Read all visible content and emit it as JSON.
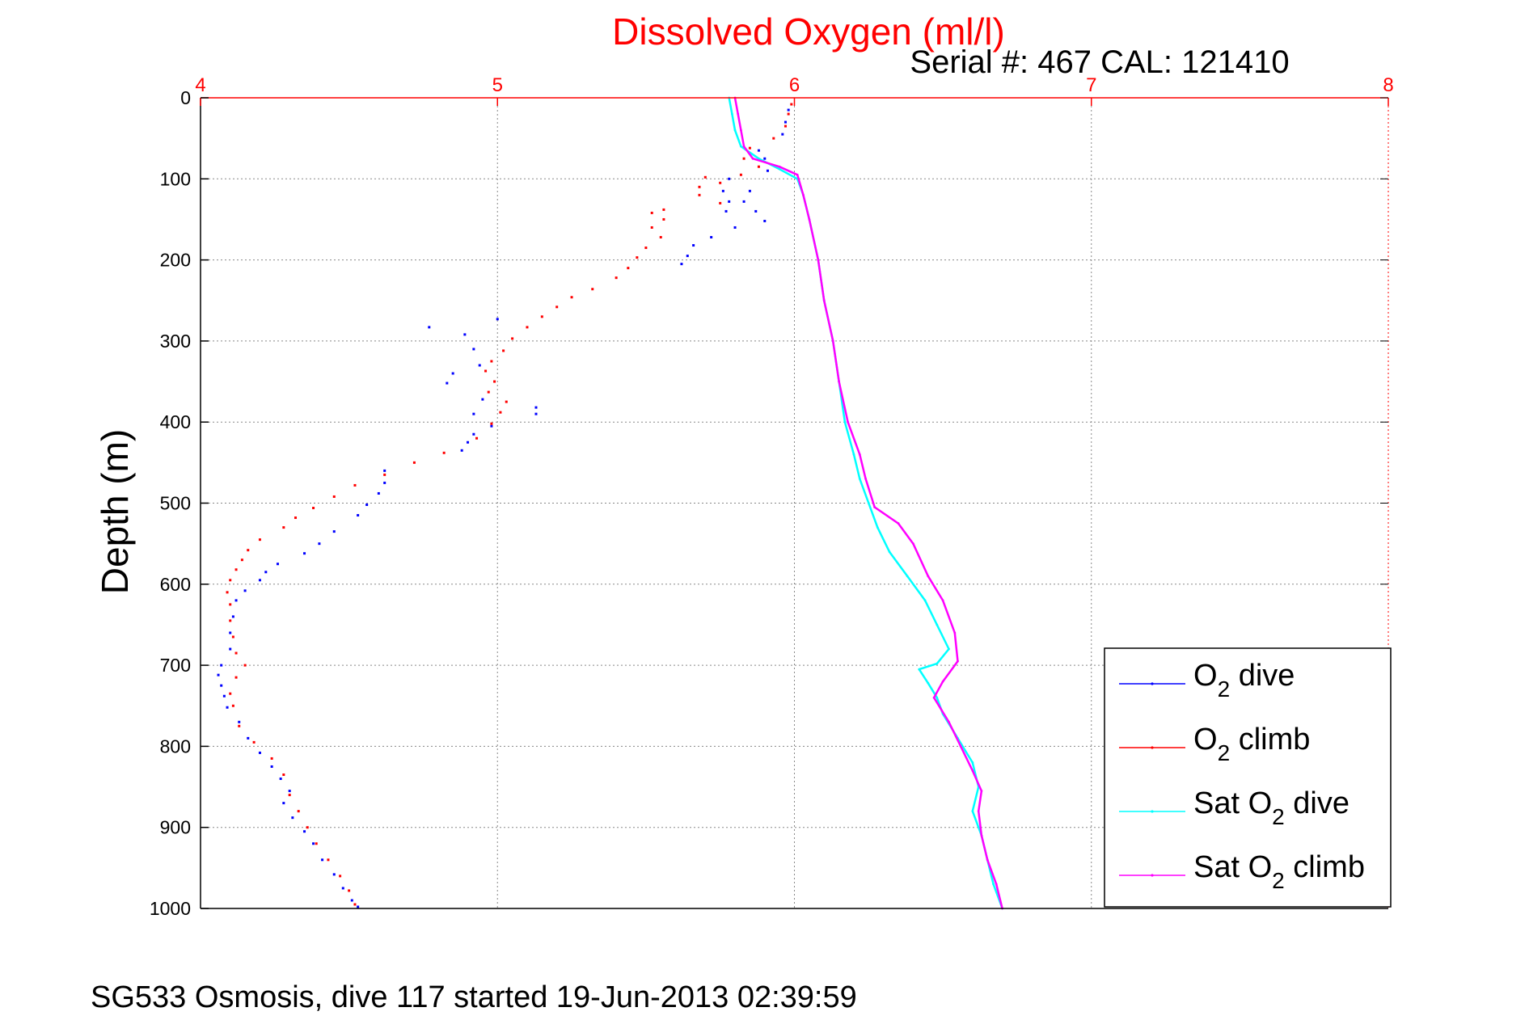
{
  "chart_data": {
    "type": "scatter",
    "title": "Dissolved Oxygen (ml/l)",
    "subtitle": "Serial #: 467  CAL: 121410",
    "footer": "SG533 Osmosis, dive 117 started 19-Jun-2013 02:39:59",
    "xlabel": "",
    "ylabel": "Depth (m)",
    "xlim": [
      4,
      8
    ],
    "ylim": [
      0,
      1000
    ],
    "y_reversed": true,
    "x_axis_position": "top",
    "x_ticks": [
      4,
      5,
      6,
      7,
      8
    ],
    "y_ticks": [
      0,
      100,
      200,
      300,
      400,
      500,
      600,
      700,
      800,
      900,
      1000
    ],
    "grid": true,
    "legend_position": "bottom-right",
    "colors": {
      "title": "#ff0000",
      "x_ticks": "#ff0000",
      "grid": "#888888"
    },
    "series": [
      {
        "name": "O2 dive",
        "label_base": "O",
        "label_sub": "2",
        "label_rest": " dive",
        "color": "#0000ff",
        "style": "points",
        "points": [
          [
            5.98,
            15
          ],
          [
            5.97,
            30
          ],
          [
            5.96,
            45
          ],
          [
            5.88,
            65
          ],
          [
            5.9,
            75
          ],
          [
            5.91,
            90
          ],
          [
            5.78,
            100
          ],
          [
            5.76,
            115
          ],
          [
            5.85,
            115
          ],
          [
            5.78,
            128
          ],
          [
            5.83,
            128
          ],
          [
            5.77,
            140
          ],
          [
            5.87,
            140
          ],
          [
            5.9,
            152
          ],
          [
            5.8,
            160
          ],
          [
            5.72,
            172
          ],
          [
            5.66,
            182
          ],
          [
            5.64,
            195
          ],
          [
            5.62,
            205
          ],
          [
            4.77,
            283
          ],
          [
            5.0,
            273
          ],
          [
            4.89,
            292
          ],
          [
            4.92,
            310
          ],
          [
            4.94,
            330
          ],
          [
            4.85,
            340
          ],
          [
            4.83,
            352
          ],
          [
            4.95,
            372
          ],
          [
            4.92,
            390
          ],
          [
            5.13,
            382
          ],
          [
            5.13,
            390
          ],
          [
            4.98,
            405
          ],
          [
            4.92,
            415
          ],
          [
            4.9,
            425
          ],
          [
            4.88,
            435
          ],
          [
            4.62,
            460
          ],
          [
            4.62,
            475
          ],
          [
            4.6,
            488
          ],
          [
            4.56,
            502
          ],
          [
            4.53,
            515
          ],
          [
            4.45,
            535
          ],
          [
            4.4,
            550
          ],
          [
            4.35,
            562
          ],
          [
            4.26,
            575
          ],
          [
            4.22,
            585
          ],
          [
            4.2,
            595
          ],
          [
            4.15,
            608
          ],
          [
            4.12,
            620
          ],
          [
            4.11,
            640
          ],
          [
            4.1,
            660
          ],
          [
            4.1,
            680
          ],
          [
            4.07,
            700
          ],
          [
            4.06,
            712
          ],
          [
            4.07,
            725
          ],
          [
            4.08,
            738
          ],
          [
            4.09,
            752
          ],
          [
            4.13,
            770
          ],
          [
            4.16,
            790
          ],
          [
            4.2,
            808
          ],
          [
            4.24,
            825
          ],
          [
            4.27,
            840
          ],
          [
            4.3,
            855
          ],
          [
            4.28,
            870
          ],
          [
            4.31,
            888
          ],
          [
            4.35,
            905
          ],
          [
            4.38,
            920
          ],
          [
            4.41,
            940
          ],
          [
            4.45,
            958
          ],
          [
            4.48,
            975
          ],
          [
            4.51,
            990
          ],
          [
            4.53,
            998
          ]
        ]
      },
      {
        "name": "O2 climb",
        "label_base": "O",
        "label_sub": "2",
        "label_rest": " climb",
        "color": "#ff0000",
        "style": "points",
        "points": [
          [
            5.99,
            8
          ],
          [
            5.98,
            20
          ],
          [
            5.97,
            35
          ],
          [
            5.93,
            50
          ],
          [
            5.85,
            62
          ],
          [
            5.83,
            75
          ],
          [
            5.88,
            85
          ],
          [
            5.82,
            95
          ],
          [
            5.7,
            98
          ],
          [
            5.68,
            110
          ],
          [
            5.75,
            105
          ],
          [
            5.68,
            120
          ],
          [
            5.75,
            130
          ],
          [
            5.56,
            138
          ],
          [
            5.52,
            142
          ],
          [
            5.56,
            150
          ],
          [
            5.52,
            160
          ],
          [
            5.55,
            172
          ],
          [
            5.5,
            185
          ],
          [
            5.47,
            197
          ],
          [
            5.44,
            210
          ],
          [
            5.4,
            222
          ],
          [
            5.32,
            236
          ],
          [
            5.25,
            246
          ],
          [
            5.2,
            258
          ],
          [
            5.15,
            270
          ],
          [
            5.1,
            283
          ],
          [
            5.05,
            297
          ],
          [
            5.02,
            312
          ],
          [
            4.98,
            325
          ],
          [
            4.96,
            337
          ],
          [
            4.99,
            350
          ],
          [
            4.97,
            363
          ],
          [
            5.03,
            375
          ],
          [
            5.01,
            388
          ],
          [
            4.98,
            402
          ],
          [
            4.93,
            420
          ],
          [
            4.82,
            438
          ],
          [
            4.72,
            450
          ],
          [
            4.62,
            465
          ],
          [
            4.52,
            478
          ],
          [
            4.45,
            492
          ],
          [
            4.38,
            506
          ],
          [
            4.32,
            518
          ],
          [
            4.28,
            530
          ],
          [
            4.2,
            545
          ],
          [
            4.16,
            558
          ],
          [
            4.14,
            570
          ],
          [
            4.12,
            582
          ],
          [
            4.1,
            595
          ],
          [
            4.09,
            610
          ],
          [
            4.1,
            625
          ],
          [
            4.1,
            645
          ],
          [
            4.11,
            665
          ],
          [
            4.12,
            685
          ],
          [
            4.15,
            700
          ],
          [
            4.12,
            715
          ],
          [
            4.1,
            735
          ],
          [
            4.11,
            750
          ],
          [
            4.13,
            775
          ],
          [
            4.18,
            795
          ],
          [
            4.24,
            815
          ],
          [
            4.28,
            835
          ],
          [
            4.3,
            860
          ],
          [
            4.33,
            880
          ],
          [
            4.36,
            900
          ],
          [
            4.39,
            920
          ],
          [
            4.43,
            940
          ],
          [
            4.47,
            960
          ],
          [
            4.5,
            978
          ],
          [
            4.52,
            995
          ]
        ]
      },
      {
        "name": "Sat O2 dive",
        "label_base": "Sat O",
        "label_sub": "2",
        "label_rest": " dive",
        "color": "#00ffff",
        "style": "line",
        "points": [
          [
            5.78,
            0
          ],
          [
            5.79,
            20
          ],
          [
            5.8,
            40
          ],
          [
            5.82,
            60
          ],
          [
            5.88,
            75
          ],
          [
            5.95,
            88
          ],
          [
            6.01,
            100
          ],
          [
            6.03,
            120
          ],
          [
            6.05,
            150
          ],
          [
            6.08,
            200
          ],
          [
            6.1,
            250
          ],
          [
            6.13,
            300
          ],
          [
            6.15,
            350
          ],
          [
            6.17,
            400
          ],
          [
            6.2,
            440
          ],
          [
            6.22,
            470
          ],
          [
            6.25,
            500
          ],
          [
            6.28,
            530
          ],
          [
            6.32,
            560
          ],
          [
            6.38,
            590
          ],
          [
            6.44,
            620
          ],
          [
            6.48,
            650
          ],
          [
            6.52,
            680
          ],
          [
            6.48,
            698
          ],
          [
            6.42,
            705
          ],
          [
            6.45,
            722
          ],
          [
            6.48,
            740
          ],
          [
            6.5,
            760
          ],
          [
            6.55,
            790
          ],
          [
            6.6,
            820
          ],
          [
            6.62,
            850
          ],
          [
            6.6,
            880
          ],
          [
            6.63,
            910
          ],
          [
            6.65,
            940
          ],
          [
            6.67,
            970
          ],
          [
            6.7,
            1000
          ]
        ]
      },
      {
        "name": "Sat O2 climb",
        "label_base": "Sat O",
        "label_sub": "2",
        "label_rest": " climb",
        "color": "#ff00ff",
        "style": "line",
        "points": [
          [
            5.8,
            0
          ],
          [
            5.81,
            20
          ],
          [
            5.82,
            40
          ],
          [
            5.83,
            60
          ],
          [
            5.86,
            75
          ],
          [
            5.95,
            85
          ],
          [
            6.01,
            95
          ],
          [
            6.03,
            120
          ],
          [
            6.05,
            150
          ],
          [
            6.08,
            200
          ],
          [
            6.1,
            250
          ],
          [
            6.13,
            300
          ],
          [
            6.15,
            350
          ],
          [
            6.18,
            400
          ],
          [
            6.22,
            440
          ],
          [
            6.24,
            470
          ],
          [
            6.27,
            505
          ],
          [
            6.35,
            525
          ],
          [
            6.4,
            550
          ],
          [
            6.45,
            590
          ],
          [
            6.5,
            620
          ],
          [
            6.54,
            660
          ],
          [
            6.55,
            695
          ],
          [
            6.5,
            720
          ],
          [
            6.47,
            740
          ],
          [
            6.52,
            770
          ],
          [
            6.56,
            800
          ],
          [
            6.6,
            830
          ],
          [
            6.63,
            855
          ],
          [
            6.62,
            880
          ],
          [
            6.63,
            910
          ],
          [
            6.65,
            940
          ],
          [
            6.68,
            970
          ],
          [
            6.7,
            1000
          ]
        ]
      }
    ]
  }
}
